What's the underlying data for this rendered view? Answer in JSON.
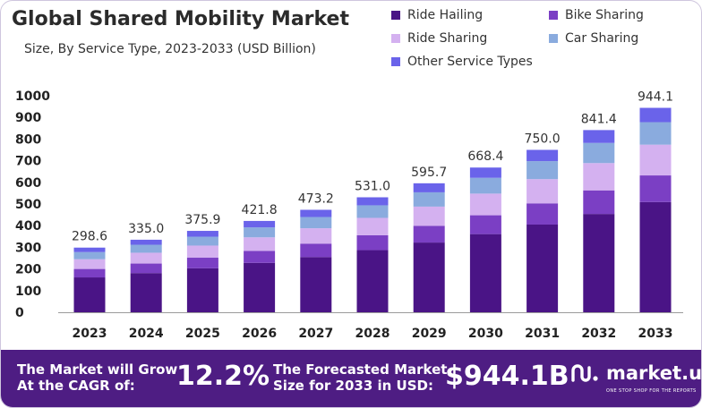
{
  "title": "Global Shared Mobility Market",
  "subtitle": "Size, By Service Type, 2023-2033 (USD Billion)",
  "legend": [
    {
      "label": "Ride Hailing",
      "color": "#4a1486"
    },
    {
      "label": "Bike Sharing",
      "color": "#7b3fc4"
    },
    {
      "label": "Ride Sharing",
      "color": "#d4b1f0"
    },
    {
      "label": "Car Sharing",
      "color": "#8aabde"
    },
    {
      "label": "Other Service Types",
      "color": "#6a63ea"
    }
  ],
  "chart_data": {
    "type": "bar",
    "stacked": true,
    "categories": [
      "2023",
      "2024",
      "2025",
      "2026",
      "2027",
      "2028",
      "2029",
      "2030",
      "2031",
      "2032",
      "2033"
    ],
    "totals": [
      298.6,
      335.0,
      375.9,
      421.8,
      473.2,
      531.0,
      595.7,
      668.4,
      750.0,
      841.4,
      944.1
    ],
    "total_labels": [
      "298.6",
      "335.0",
      "375.9",
      "421.8",
      "473.2",
      "531.0",
      "595.7",
      "668.4",
      "750.0",
      "841.4",
      "944.1"
    ],
    "series": [
      {
        "name": "Ride Hailing",
        "color": "#4a1486",
        "values": [
          161,
          181,
          203,
          228,
          255,
          287,
          322,
          361,
          405,
          454,
          509
        ]
      },
      {
        "name": "Bike Sharing",
        "color": "#7b3fc4",
        "values": [
          39,
          44,
          49,
          55,
          62,
          69,
          77,
          87,
          98,
          109,
          123
        ]
      },
      {
        "name": "Ride Sharing",
        "color": "#d4b1f0",
        "values": [
          45,
          50,
          56,
          63,
          71,
          80,
          89,
          100,
          112,
          126,
          142
        ]
      },
      {
        "name": "Car Sharing",
        "color": "#8aabde",
        "values": [
          33,
          37,
          41,
          46,
          52,
          58,
          66,
          73,
          83,
          93,
          104
        ]
      },
      {
        "name": "Other Service Types",
        "color": "#6a63ea",
        "values": [
          20.6,
          23.0,
          26.9,
          29.8,
          33.2,
          37.0,
          41.7,
          47.4,
          52.0,
          59.4,
          66.1
        ]
      }
    ],
    "yticks": [
      "0",
      "100",
      "200",
      "300",
      "400",
      "500",
      "600",
      "700",
      "800",
      "900",
      "1000"
    ],
    "ylim": [
      0,
      1000
    ],
    "grid": false,
    "legend_position": "top-right"
  },
  "footer": {
    "cagr_line1": "The Market will Grow",
    "cagr_line2": "At the CAGR of:",
    "cagr_value": "12.2%",
    "forecast_line1": "The Forecasted Market",
    "forecast_line2": "Size for 2033 in USD:",
    "forecast_value": "$944.1B",
    "logo_name": "market.us",
    "logo_tagline": "ONE STOP SHOP FOR THE REPORTS"
  }
}
